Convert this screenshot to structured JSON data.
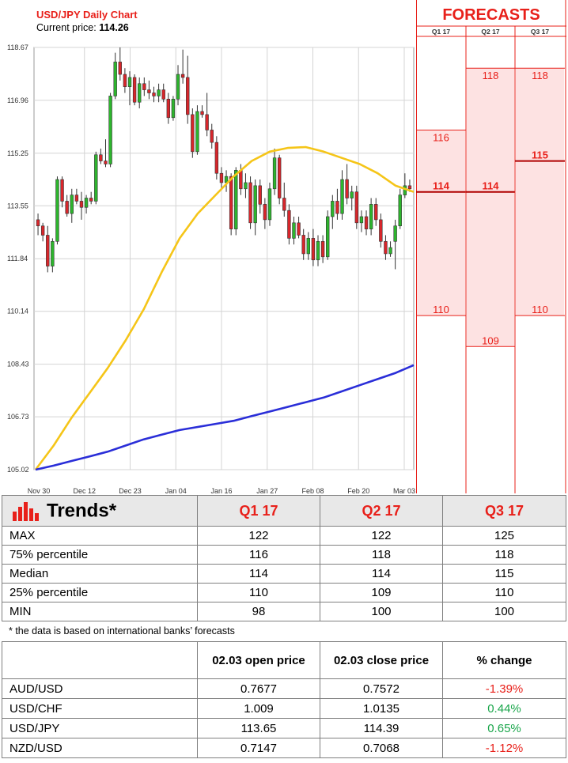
{
  "header": {
    "title": "USD/JPY Daily Chart",
    "current_price_label": "Current price:",
    "current_price_value": "114.26"
  },
  "chart_data": [
    {
      "type": "candlestick",
      "title": "USD/JPY Daily Chart",
      "y_ticks": [
        "118.67",
        "116.96",
        "115.25",
        "113.55",
        "111.84",
        "110.14",
        "108.43",
        "106.73",
        "105.02"
      ],
      "x_ticks": [
        "Nov 30",
        "Dec 12",
        "Dec 23",
        "Jan 04",
        "Jan 16",
        "Jan 27",
        "Feb 08",
        "Feb 20",
        "Mar 03"
      ],
      "ylim": [
        105.02,
        118.67
      ],
      "grid": true,
      "candles": [
        {
          "o": 113.1,
          "h": 113.3,
          "l": 112.6,
          "c": 112.9
        },
        {
          "o": 112.9,
          "h": 113.0,
          "l": 112.4,
          "c": 112.6
        },
        {
          "o": 112.6,
          "h": 112.9,
          "l": 111.4,
          "c": 111.6
        },
        {
          "o": 111.6,
          "h": 112.5,
          "l": 111.4,
          "c": 112.4
        },
        {
          "o": 112.4,
          "h": 114.5,
          "l": 112.3,
          "c": 114.4
        },
        {
          "o": 114.4,
          "h": 114.5,
          "l": 113.5,
          "c": 113.7
        },
        {
          "o": 113.7,
          "h": 113.9,
          "l": 113.2,
          "c": 113.3
        },
        {
          "o": 113.3,
          "h": 114.1,
          "l": 113.0,
          "c": 113.9
        },
        {
          "o": 113.9,
          "h": 114.1,
          "l": 113.6,
          "c": 113.7
        },
        {
          "o": 113.7,
          "h": 114.0,
          "l": 113.1,
          "c": 113.5
        },
        {
          "o": 113.5,
          "h": 113.9,
          "l": 113.3,
          "c": 113.8
        },
        {
          "o": 113.8,
          "h": 114.0,
          "l": 113.6,
          "c": 113.7
        },
        {
          "o": 113.7,
          "h": 115.3,
          "l": 113.6,
          "c": 115.2
        },
        {
          "o": 115.2,
          "h": 115.4,
          "l": 114.9,
          "c": 115.0
        },
        {
          "o": 115.0,
          "h": 115.7,
          "l": 114.8,
          "c": 114.9
        },
        {
          "o": 114.9,
          "h": 117.2,
          "l": 114.8,
          "c": 117.1
        },
        {
          "o": 117.1,
          "h": 118.5,
          "l": 117.0,
          "c": 118.2
        },
        {
          "o": 118.2,
          "h": 118.67,
          "l": 117.6,
          "c": 117.8
        },
        {
          "o": 117.8,
          "h": 118.0,
          "l": 117.2,
          "c": 117.4
        },
        {
          "o": 117.4,
          "h": 117.9,
          "l": 116.8,
          "c": 117.7
        },
        {
          "o": 117.7,
          "h": 117.8,
          "l": 116.8,
          "c": 116.9
        },
        {
          "o": 116.9,
          "h": 117.7,
          "l": 116.7,
          "c": 117.5
        },
        {
          "o": 117.5,
          "h": 117.7,
          "l": 117.1,
          "c": 117.3
        },
        {
          "o": 117.3,
          "h": 117.6,
          "l": 117.0,
          "c": 117.2
        },
        {
          "o": 117.2,
          "h": 117.4,
          "l": 116.9,
          "c": 117.1
        },
        {
          "o": 117.1,
          "h": 117.5,
          "l": 116.9,
          "c": 117.3
        },
        {
          "o": 117.3,
          "h": 117.5,
          "l": 116.9,
          "c": 117.0
        },
        {
          "o": 117.0,
          "h": 117.2,
          "l": 116.2,
          "c": 116.4
        },
        {
          "o": 116.4,
          "h": 117.1,
          "l": 116.3,
          "c": 117.0
        },
        {
          "o": 117.0,
          "h": 118.1,
          "l": 116.8,
          "c": 117.8
        },
        {
          "o": 117.8,
          "h": 118.6,
          "l": 117.5,
          "c": 117.7
        },
        {
          "o": 117.7,
          "h": 118.4,
          "l": 116.2,
          "c": 116.5
        },
        {
          "o": 116.5,
          "h": 116.7,
          "l": 115.1,
          "c": 115.3
        },
        {
          "o": 115.3,
          "h": 116.8,
          "l": 115.2,
          "c": 116.6
        },
        {
          "o": 116.6,
          "h": 116.8,
          "l": 116.4,
          "c": 116.5
        },
        {
          "o": 116.5,
          "h": 117.2,
          "l": 115.8,
          "c": 116.0
        },
        {
          "o": 116.0,
          "h": 116.2,
          "l": 115.4,
          "c": 115.6
        },
        {
          "o": 115.6,
          "h": 115.8,
          "l": 114.4,
          "c": 114.6
        },
        {
          "o": 114.6,
          "h": 114.8,
          "l": 114.1,
          "c": 114.3
        },
        {
          "o": 114.3,
          "h": 114.7,
          "l": 114.0,
          "c": 114.5
        },
        {
          "o": 114.5,
          "h": 114.6,
          "l": 112.6,
          "c": 112.8
        },
        {
          "o": 112.8,
          "h": 114.8,
          "l": 112.6,
          "c": 114.7
        },
        {
          "o": 114.7,
          "h": 114.9,
          "l": 113.9,
          "c": 114.1
        },
        {
          "o": 114.1,
          "h": 114.6,
          "l": 113.8,
          "c": 114.3
        },
        {
          "o": 114.3,
          "h": 114.5,
          "l": 112.8,
          "c": 113.0
        },
        {
          "o": 113.0,
          "h": 114.4,
          "l": 112.6,
          "c": 114.2
        },
        {
          "o": 114.2,
          "h": 114.4,
          "l": 113.3,
          "c": 113.6
        },
        {
          "o": 113.6,
          "h": 113.8,
          "l": 112.8,
          "c": 113.1
        },
        {
          "o": 113.1,
          "h": 114.3,
          "l": 112.9,
          "c": 114.1
        },
        {
          "o": 114.1,
          "h": 115.4,
          "l": 113.9,
          "c": 115.1
        },
        {
          "o": 115.1,
          "h": 115.2,
          "l": 113.6,
          "c": 113.8
        },
        {
          "o": 113.8,
          "h": 114.3,
          "l": 113.2,
          "c": 113.4
        },
        {
          "o": 113.4,
          "h": 113.6,
          "l": 112.3,
          "c": 112.5
        },
        {
          "o": 112.5,
          "h": 113.2,
          "l": 112.3,
          "c": 113.0
        },
        {
          "o": 113.0,
          "h": 113.2,
          "l": 112.5,
          "c": 112.6
        },
        {
          "o": 112.6,
          "h": 112.8,
          "l": 111.8,
          "c": 112.0
        },
        {
          "o": 112.0,
          "h": 112.7,
          "l": 111.8,
          "c": 112.5
        },
        {
          "o": 112.5,
          "h": 112.8,
          "l": 111.6,
          "c": 111.8
        },
        {
          "o": 111.8,
          "h": 112.6,
          "l": 111.6,
          "c": 112.4
        },
        {
          "o": 112.4,
          "h": 112.6,
          "l": 111.7,
          "c": 111.9
        },
        {
          "o": 111.9,
          "h": 113.4,
          "l": 111.8,
          "c": 113.2
        },
        {
          "o": 113.2,
          "h": 113.9,
          "l": 112.8,
          "c": 113.7
        },
        {
          "o": 113.7,
          "h": 114.1,
          "l": 113.1,
          "c": 113.3
        },
        {
          "o": 113.3,
          "h": 114.7,
          "l": 113.1,
          "c": 114.4
        },
        {
          "o": 114.4,
          "h": 114.9,
          "l": 113.6,
          "c": 113.8
        },
        {
          "o": 113.8,
          "h": 114.2,
          "l": 113.4,
          "c": 114.0
        },
        {
          "o": 114.0,
          "h": 114.2,
          "l": 112.8,
          "c": 113.0
        },
        {
          "o": 113.0,
          "h": 113.4,
          "l": 112.7,
          "c": 113.2
        },
        {
          "o": 113.2,
          "h": 113.4,
          "l": 112.6,
          "c": 112.8
        },
        {
          "o": 112.8,
          "h": 113.8,
          "l": 112.6,
          "c": 113.6
        },
        {
          "o": 113.6,
          "h": 113.8,
          "l": 112.9,
          "c": 113.1
        },
        {
          "o": 113.1,
          "h": 113.3,
          "l": 112.2,
          "c": 112.4
        },
        {
          "o": 112.4,
          "h": 112.6,
          "l": 111.8,
          "c": 112.0
        },
        {
          "o": 112.0,
          "h": 112.4,
          "l": 111.9,
          "c": 112.2
        },
        {
          "o": 112.4,
          "h": 113.1,
          "l": 111.5,
          "c": 112.9
        },
        {
          "o": 112.9,
          "h": 114.1,
          "l": 112.8,
          "c": 113.9
        },
        {
          "o": 113.9,
          "h": 114.6,
          "l": 113.8,
          "c": 114.2
        },
        {
          "o": 114.2,
          "h": 114.4,
          "l": 114.0,
          "c": 114.1
        }
      ],
      "series": [
        {
          "color": "#f5c518",
          "values": [
            105.02,
            105.8,
            106.7,
            107.5,
            108.3,
            109.2,
            110.2,
            111.4,
            112.5,
            113.3,
            113.9,
            114.5,
            115.0,
            115.3,
            115.42,
            115.45,
            115.3,
            115.1,
            114.9,
            114.6,
            114.2,
            114.0
          ]
        },
        {
          "color": "#2a2ed8",
          "values": [
            105.02,
            105.15,
            105.3,
            105.45,
            105.6,
            105.8,
            106.0,
            106.15,
            106.3,
            106.4,
            106.5,
            106.6,
            106.75,
            106.9,
            107.05,
            107.2,
            107.35,
            107.55,
            107.75,
            107.95,
            108.15,
            108.4
          ]
        }
      ]
    },
    {
      "type": "range",
      "title": "FORECASTS",
      "categories": [
        "Q1 17",
        "Q2 17",
        "Q3 17"
      ],
      "ylim": [
        105.02,
        118.67
      ],
      "ranges": [
        {
          "p75": 116,
          "median": 114,
          "p25": 110,
          "p75_label": "116",
          "median_label": "114",
          "p25_label": "110"
        },
        {
          "p75": 118,
          "median": 114,
          "p25": 109,
          "p75_label": "118",
          "median_label": "114",
          "p25_label": "109"
        },
        {
          "p75": 118,
          "median": 115,
          "p25": 110,
          "p75_label": "118",
          "median_label": "115",
          "p25_label": "110"
        }
      ]
    }
  ],
  "trends": {
    "title": "Trends*",
    "columns": [
      "Q1 17",
      "Q2 17",
      "Q3 17"
    ],
    "rows": [
      {
        "label": "MAX",
        "values": [
          "122",
          "122",
          "125"
        ]
      },
      {
        "label": "75% percentile",
        "values": [
          "116",
          "118",
          "118"
        ]
      },
      {
        "label": "Median",
        "values": [
          "114",
          "114",
          "115"
        ]
      },
      {
        "label": "25% percentile",
        "values": [
          "110",
          "109",
          "110"
        ]
      },
      {
        "label": "MIN",
        "values": [
          "98",
          "100",
          "100"
        ]
      }
    ],
    "footnote": "* the data is based on international banks’ forecasts",
    "icon_colors": [
      "#e8201a"
    ]
  },
  "prices": {
    "headers": [
      "",
      "02.03 open price",
      "02.03 close price",
      "% change"
    ],
    "rows": [
      {
        "pair": "AUD/USD",
        "open": "0.7677",
        "close": "0.7572",
        "change": "-1.39%",
        "direction": "neg"
      },
      {
        "pair": "USD/CHF",
        "open": "1.009",
        "close": "1.0135",
        "change": "0.44%",
        "direction": "pos"
      },
      {
        "pair": "USD/JPY",
        "open": "113.65",
        "close": "114.39",
        "change": "0.65%",
        "direction": "pos"
      },
      {
        "pair": "NZD/USD",
        "open": "0.7147",
        "close": "0.7068",
        "change": "-1.12%",
        "direction": "neg"
      }
    ]
  },
  "colors": {
    "accent": "#e8201a",
    "up": "#2db52d",
    "down": "#d8262b",
    "forecast_fill": "#fde2e2",
    "positive_text": "#1aa64b"
  }
}
